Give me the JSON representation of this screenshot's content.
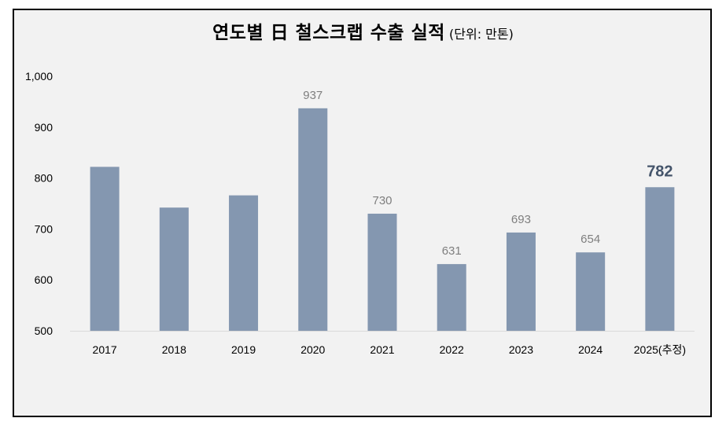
{
  "title": "연도별 日 철스크랩 수출 실적",
  "unit_label": "(단위: 만톤)",
  "chart_data": {
    "type": "bar",
    "title": "연도별 日 철스크랩 수출 실적",
    "subtitle": "(단위: 만톤)",
    "xlabel": "",
    "ylabel": "",
    "categories": [
      "2017",
      "2018",
      "2019",
      "2020",
      "2021",
      "2022",
      "2023",
      "2024",
      "2025(추정)"
    ],
    "values": [
      822,
      742,
      766,
      937,
      730,
      631,
      693,
      654,
      782
    ],
    "data_labels": [
      "",
      "",
      "",
      "937",
      "730",
      "631",
      "693",
      "654",
      "782"
    ],
    "highlight_index": 8,
    "ylim": [
      500,
      1000
    ],
    "yticks": [
      "500",
      "600",
      "700",
      "800",
      "900",
      "1,000"
    ],
    "ytick_values": [
      500,
      600,
      700,
      800,
      900,
      1000
    ],
    "bar_color": "#8497b0",
    "label_color": "#7f7f7f",
    "highlight_label_color": "#44546a",
    "grid": false,
    "legend": "none"
  }
}
